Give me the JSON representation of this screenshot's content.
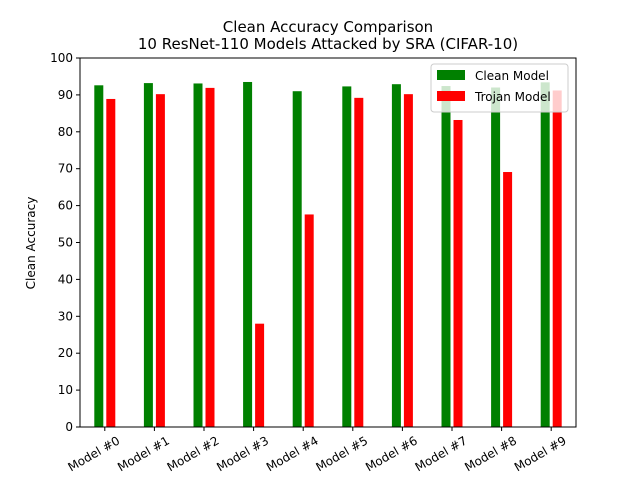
{
  "chart_data": {
    "type": "bar",
    "title": "Clean Accuracy Comparison",
    "subtitle": "10 ResNet-110 Models Attacked by SRA (CIFAR-10)",
    "xlabel": "",
    "ylabel": "Clean Accuracy",
    "ylim": [
      0,
      100
    ],
    "yticks": [
      0,
      10,
      20,
      30,
      40,
      50,
      60,
      70,
      80,
      90,
      100
    ],
    "categories": [
      "Model #0",
      "Model #1",
      "Model #2",
      "Model #3",
      "Model #4",
      "Model #5",
      "Model #6",
      "Model #7",
      "Model #8",
      "Model #9"
    ],
    "series": [
      {
        "name": "Clean Model",
        "color": "#008000",
        "values": [
          92.6,
          93.2,
          93.1,
          93.5,
          91.0,
          92.3,
          92.9,
          92.4,
          92.0,
          93.4
        ]
      },
      {
        "name": "Trojan Model",
        "color": "#ff0000",
        "values": [
          88.9,
          90.2,
          91.9,
          28.0,
          57.6,
          89.2,
          90.2,
          83.2,
          69.1,
          91.2
        ]
      }
    ],
    "grid": false,
    "legend_position": "top-right"
  }
}
